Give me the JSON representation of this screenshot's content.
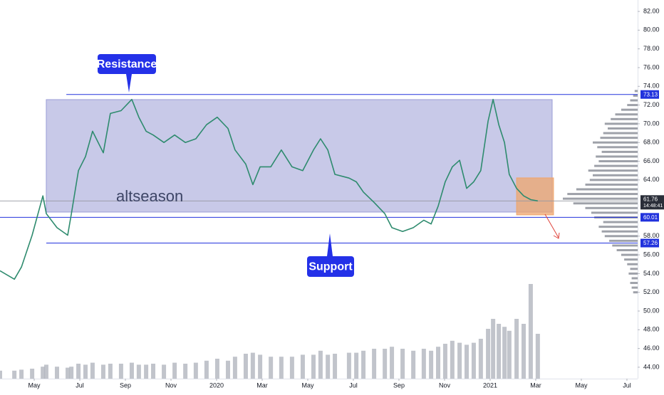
{
  "chart_data": {
    "type": "line",
    "xlim": [
      2.5,
      30.47
    ],
    "ylim": [
      42.78,
      83.22
    ],
    "xticks": [
      {
        "value": 4,
        "label": "May"
      },
      {
        "value": 6,
        "label": "Jul"
      },
      {
        "value": 8,
        "label": "Sep"
      },
      {
        "value": 10,
        "label": "Nov"
      },
      {
        "value": 12,
        "label": "2020"
      },
      {
        "value": 14,
        "label": "Mar"
      },
      {
        "value": 16,
        "label": "May"
      },
      {
        "value": 18,
        "label": "Jul"
      },
      {
        "value": 20,
        "label": "Sep"
      },
      {
        "value": 22,
        "label": "Nov"
      },
      {
        "value": 24,
        "label": "2021"
      },
      {
        "value": 26,
        "label": "Mar"
      },
      {
        "value": 28,
        "label": "May"
      },
      {
        "value": 30,
        "label": "Jul"
      }
    ],
    "yticks": [
      {
        "value": 82,
        "label": "82.00"
      },
      {
        "value": 80,
        "label": "80.00"
      },
      {
        "value": 78,
        "label": "78.00"
      },
      {
        "value": 76,
        "label": "76.00"
      },
      {
        "value": 74,
        "label": "74.00"
      },
      {
        "value": 72,
        "label": "72.00"
      },
      {
        "value": 70,
        "label": "70.00"
      },
      {
        "value": 68,
        "label": "68.00"
      },
      {
        "value": 66,
        "label": "66.00"
      },
      {
        "value": 64,
        "label": "64.00"
      },
      {
        "value": 58,
        "label": "58.00"
      },
      {
        "value": 56,
        "label": "56.00"
      },
      {
        "value": 54,
        "label": "54.00"
      },
      {
        "value": 52,
        "label": "52.00"
      },
      {
        "value": 50,
        "label": "50.00"
      },
      {
        "value": 48,
        "label": "48.00"
      },
      {
        "value": 46,
        "label": "46.00"
      },
      {
        "value": 44,
        "label": "44.00"
      }
    ],
    "series": [
      {
        "name": "altseason",
        "color": "#2e8b6e",
        "x": [
          2.5,
          3.13,
          3.44,
          3.91,
          4.38,
          4.53,
          5.0,
          5.47,
          5.63,
          5.94,
          6.25,
          6.56,
          7.03,
          7.34,
          7.81,
          8.28,
          8.59,
          8.91,
          9.22,
          9.69,
          10.16,
          10.63,
          11.09,
          11.56,
          12.03,
          12.5,
          12.81,
          13.28,
          13.59,
          13.91,
          14.38,
          14.84,
          15.31,
          15.78,
          16.25,
          16.56,
          16.88,
          17.19,
          17.81,
          18.13,
          18.44,
          18.91,
          19.38,
          19.69,
          20.16,
          20.63,
          21.09,
          21.41,
          21.72,
          22.03,
          22.34,
          22.66,
          22.97,
          23.28,
          23.59,
          23.91,
          24.13,
          24.38,
          24.63,
          24.84,
          25.16,
          25.47,
          25.78,
          26.09
        ],
        "values": [
          54.3,
          53.4,
          54.7,
          58.1,
          62.3,
          60.4,
          58.9,
          58.1,
          60.4,
          65,
          66.5,
          69.2,
          66.9,
          71.1,
          71.4,
          72.6,
          70.7,
          69.2,
          68.8,
          68,
          68.8,
          68,
          68.4,
          69.9,
          70.7,
          69.5,
          67.2,
          65.7,
          63.5,
          65.4,
          65.4,
          67.2,
          65.4,
          65,
          67.2,
          68.4,
          67.2,
          64.6,
          64.2,
          63.8,
          62.7,
          61.6,
          60.4,
          58.9,
          58.5,
          58.9,
          59.7,
          59.3,
          61.2,
          63.8,
          65.4,
          66.1,
          63.1,
          63.8,
          65,
          70.3,
          72.6,
          69.9,
          68,
          64.6,
          63.1,
          62.3,
          61.9,
          61.76
        ],
        "volume": [
          8,
          8,
          9,
          10,
          12,
          14,
          12,
          11,
          12,
          15,
          14,
          16,
          14,
          15,
          15,
          16,
          14,
          14,
          15,
          14,
          16,
          15,
          16,
          18,
          20,
          18,
          22,
          25,
          26,
          24,
          22,
          22,
          22,
          24,
          24,
          28,
          24,
          25,
          26,
          26,
          28,
          30,
          30,
          32,
          30,
          28,
          30,
          28,
          32,
          35,
          38,
          36,
          34,
          36,
          40,
          50,
          60,
          55,
          52,
          48,
          60,
          55,
          95,
          45
        ],
        "volume_color": "#b2b5be"
      }
    ],
    "volume_profile": {
      "color": "#868993",
      "prices": [
        52,
        52.5,
        53,
        53.5,
        54,
        54.5,
        55,
        55.5,
        56,
        56.5,
        57,
        57.5,
        58,
        58.5,
        59,
        59.5,
        60,
        60.5,
        61,
        61.5,
        62,
        62.5,
        63,
        63.5,
        64,
        64.5,
        65,
        65.5,
        66,
        66.5,
        67,
        67.5,
        68,
        68.5,
        69,
        69.5,
        70,
        70.5,
        71,
        71.5,
        72,
        72.5,
        73,
        73.5
      ],
      "values": [
        6,
        8,
        10,
        8,
        12,
        10,
        14,
        18,
        22,
        28,
        34,
        38,
        44,
        48,
        52,
        46,
        58,
        62,
        70,
        86,
        100,
        94,
        82,
        70,
        64,
        60,
        66,
        58,
        52,
        56,
        48,
        54,
        60,
        50,
        46,
        40,
        44,
        36,
        30,
        22,
        14,
        10,
        6,
        4
      ]
    },
    "zones": [
      {
        "x": [
          4.53,
          26.72
        ],
        "y": [
          60.57,
          72.58
        ],
        "color": "#9a9dd6"
      },
      {
        "x": [
          25.16,
          26.78
        ],
        "y": [
          60.27,
          64.22
        ],
        "color": "#efa56c"
      }
    ],
    "price_lines": [
      {
        "value": 73.13,
        "from": 5.41,
        "color": "#2233dd"
      },
      {
        "value": 60.01,
        "from": 2.5,
        "color": "#2233dd"
      },
      {
        "value": 57.26,
        "from": 4.53,
        "color": "#2233dd"
      }
    ],
    "last_price": {
      "value": 61.76,
      "countdown": "14:48:41"
    },
    "label": "altseason",
    "annotations": [
      "Resistance",
      "Support"
    ]
  }
}
